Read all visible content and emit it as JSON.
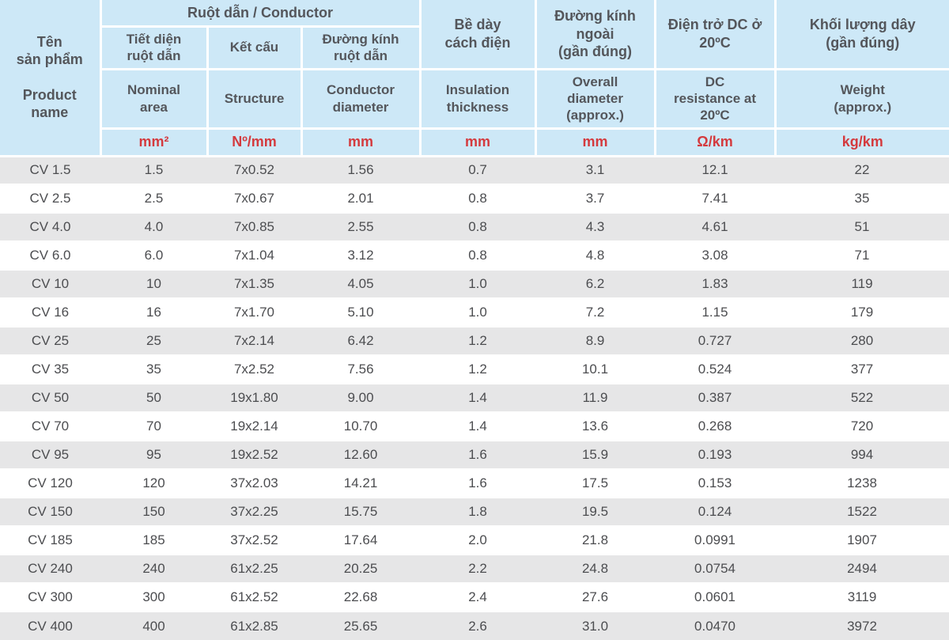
{
  "colors": {
    "header_bg": "#cde8f7",
    "header_text": "#54565b",
    "unit_red": "#d43a3e",
    "row_gray": "#e6e6e7",
    "row_white": "#ffffff",
    "data_text": "#4c4d50",
    "border_white": "#ffffff"
  },
  "table": {
    "header": {
      "product_name": {
        "vi": "Tên\nsản phẩm",
        "en": "Product\nname"
      },
      "conductor_group": "Ruột dẫn / Conductor",
      "columns": [
        {
          "id": "nominal_area",
          "vi": "Tiết diện\nruột dẫn",
          "en": "Nominal\narea",
          "unit": "mm²"
        },
        {
          "id": "structure",
          "vi": "Kết cấu",
          "en": "Structure",
          "unit": "Nº/mm"
        },
        {
          "id": "conductor_diameter",
          "vi": "Đường kính\nruột dẫn",
          "en": "Conductor\ndiameter",
          "unit": "mm"
        },
        {
          "id": "insulation_thickness",
          "vi": "Bề dày\ncách điện",
          "en": "Insulation\nthickness",
          "unit": "mm"
        },
        {
          "id": "overall_diameter",
          "vi": "Đường kính\nngoài\n(gần đúng)",
          "en": "Overall\ndiameter\n(approx.)",
          "unit": "mm"
        },
        {
          "id": "dc_resistance",
          "vi": "Điện trở DC ở\n20ºC",
          "en": "DC\nresistance at\n20ºC",
          "unit": "Ω/km"
        },
        {
          "id": "weight",
          "vi": "Khối lượng dây\n(gần đúng)",
          "en": "Weight\n(approx.)",
          "unit": "kg/km"
        }
      ]
    },
    "column_ids": [
      "product_name",
      "nominal_area",
      "structure",
      "conductor_diameter",
      "insulation_thickness",
      "overall_diameter",
      "dc_resistance",
      "weight"
    ],
    "rows": [
      [
        "CV 1.5",
        "1.5",
        "7x0.52",
        "1.56",
        "0.7",
        "3.1",
        "12.1",
        "22"
      ],
      [
        "CV 2.5",
        "2.5",
        "7x0.67",
        "2.01",
        "0.8",
        "3.7",
        "7.41",
        "35"
      ],
      [
        "CV 4.0",
        "4.0",
        "7x0.85",
        "2.55",
        "0.8",
        "4.3",
        "4.61",
        "51"
      ],
      [
        "CV 6.0",
        "6.0",
        "7x1.04",
        "3.12",
        "0.8",
        "4.8",
        "3.08",
        "71"
      ],
      [
        "CV 10",
        "10",
        "7x1.35",
        "4.05",
        "1.0",
        "6.2",
        "1.83",
        "119"
      ],
      [
        "CV 16",
        "16",
        "7x1.70",
        "5.10",
        "1.0",
        "7.2",
        "1.15",
        "179"
      ],
      [
        "CV 25",
        "25",
        "7x2.14",
        "6.42",
        "1.2",
        "8.9",
        "0.727",
        "280"
      ],
      [
        "CV 35",
        "35",
        "7x2.52",
        "7.56",
        "1.2",
        "10.1",
        "0.524",
        "377"
      ],
      [
        "CV 50",
        "50",
        "19x1.80",
        "9.00",
        "1.4",
        "11.9",
        "0.387",
        "522"
      ],
      [
        "CV 70",
        "70",
        "19x2.14",
        "10.70",
        "1.4",
        "13.6",
        "0.268",
        "720"
      ],
      [
        "CV 95",
        "95",
        "19x2.52",
        "12.60",
        "1.6",
        "15.9",
        "0.193",
        "994"
      ],
      [
        "CV 120",
        "120",
        "37x2.03",
        "14.21",
        "1.6",
        "17.5",
        "0.153",
        "1238"
      ],
      [
        "CV 150",
        "150",
        "37x2.25",
        "15.75",
        "1.8",
        "19.5",
        "0.124",
        "1522"
      ],
      [
        "CV 185",
        "185",
        "37x2.52",
        "17.64",
        "2.0",
        "21.8",
        "0.0991",
        "1907"
      ],
      [
        "CV 240",
        "240",
        "61x2.25",
        "20.25",
        "2.2",
        "24.8",
        "0.0754",
        "2494"
      ],
      [
        "CV 300",
        "300",
        "61x2.52",
        "22.68",
        "2.4",
        "27.6",
        "0.0601",
        "3119"
      ],
      [
        "CV 400",
        "400",
        "61x2.85",
        "25.65",
        "2.6",
        "31.0",
        "0.0470",
        "3972"
      ]
    ]
  }
}
